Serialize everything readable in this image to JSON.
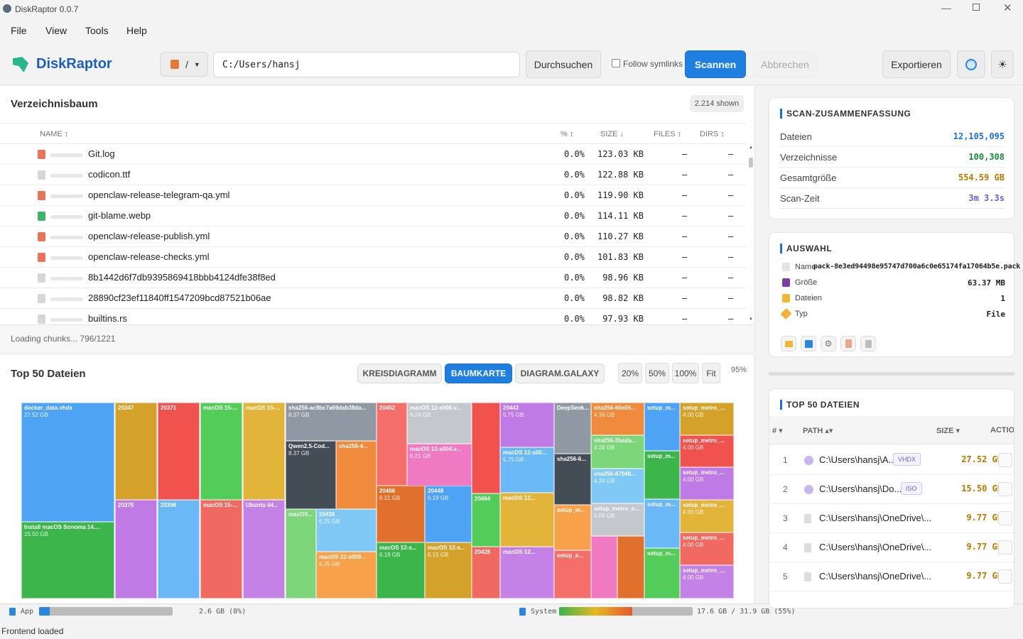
{
  "window": {
    "title": "DiskRaptor 0.0.7"
  },
  "menu": [
    "File",
    "View",
    "Tools",
    "Help"
  ],
  "toolbar": {
    "logo": "DiskRaptor",
    "drive": "/",
    "path": "C:/Users/hansj",
    "browse": "Durchsuchen",
    "follow_symlinks": "Follow symlinks",
    "scan": "Scannen",
    "cancel": "Abbrechen",
    "export": "Exportieren"
  },
  "tree": {
    "title": "Verzeichnisbaum",
    "shown": "2.214 shown",
    "columns": {
      "name": "NAME",
      "pct": "%",
      "size": "SIZE",
      "files": "FILES",
      "dirs": "DIRS"
    },
    "rows": [
      {
        "name": "Git.log",
        "pct": "0.0%",
        "size": "123.03 KB",
        "files": "–",
        "dirs": "–"
      },
      {
        "name": "codicon.ttf",
        "pct": "0.0%",
        "size": "122.88 KB",
        "files": "–",
        "dirs": "–"
      },
      {
        "name": "openclaw-release-telegram-qa.yml",
        "pct": "0.0%",
        "size": "119.90 KB",
        "files": "–",
        "dirs": "–"
      },
      {
        "name": "git-blame.webp",
        "pct": "0.0%",
        "size": "114.11 KB",
        "files": "–",
        "dirs": "–"
      },
      {
        "name": "openclaw-release-publish.yml",
        "pct": "0.0%",
        "size": "110.27 KB",
        "files": "–",
        "dirs": "–"
      },
      {
        "name": "openclaw-release-checks.yml",
        "pct": "0.0%",
        "size": "101.83 KB",
        "files": "–",
        "dirs": "–"
      },
      {
        "name": "8b1442d6f7db9395869418bbb4124dfe38f8ed",
        "pct": "0.0%",
        "size": "98.96 KB",
        "files": "–",
        "dirs": "–"
      },
      {
        "name": "28890cf23ef11840ff1547209bcd87521b06ae",
        "pct": "0.0%",
        "size": "98.82 KB",
        "files": "–",
        "dirs": "–"
      },
      {
        "name": "builtins.rs",
        "pct": "0.0%",
        "size": "97.93 KB",
        "files": "–",
        "dirs": "–"
      }
    ],
    "loading": "Loading chunks... 796/1221"
  },
  "top50": {
    "title": "Top 50 Dateien",
    "tabs": [
      "KREISDIAGRAMM",
      "BAUMKARTE",
      "DIAGRAM.GALAXY"
    ],
    "zoom": [
      "20%",
      "50%",
      "100%",
      "Fit"
    ],
    "zoom_level": "95%"
  },
  "treemap": [
    {
      "l": "docker_data.vhdx",
      "v": "27.52 GB"
    },
    {
      "l": "Install macOS Sonoma 14....",
      "v": "15.50 GB"
    },
    {
      "l": "20347",
      "v": ""
    },
    {
      "l": "20375",
      "v": ""
    },
    {
      "l": "20371",
      "v": ""
    },
    {
      "l": "20396",
      "v": ""
    },
    {
      "l": "macOS 15-...",
      "v": ""
    },
    {
      "l": "macOS 15-...",
      "v": ""
    },
    {
      "l": "macOS 15-...",
      "v": ""
    },
    {
      "l": "Ubuntu 64...",
      "v": ""
    },
    {
      "l": "sha256-ac9bc7a69dab38da...",
      "v": "8.37 GB"
    },
    {
      "l": "Qwen2.5-Cod...",
      "v": "8.37 GB"
    },
    {
      "l": "sha256-4...",
      "v": ""
    },
    {
      "l": "macOS...",
      "v": ""
    },
    {
      "l": "20438",
      "v": "6.25 GB"
    },
    {
      "l": "macOS 12-s009...",
      "v": "6.25 GB"
    },
    {
      "l": "20452",
      "v": ""
    },
    {
      "l": "macOS 12-s006.v...",
      "v": "6.24 GB"
    },
    {
      "l": "macOS 12-s004.v...",
      "v": "6.21 GB"
    },
    {
      "l": "20466",
      "v": "6.21 GB"
    },
    {
      "l": "20448",
      "v": "6.19 GB"
    },
    {
      "l": "macOS 12-s...",
      "v": "6.19 GB"
    },
    {
      "l": "macOS 12-s...",
      "v": "6.15 GB"
    },
    {
      "l": "",
      "v": ""
    },
    {
      "l": "20464",
      "v": ""
    },
    {
      "l": "20428",
      "v": ""
    },
    {
      "l": "20442",
      "v": "5.75 GB"
    },
    {
      "l": "macOS 12-s00...",
      "v": "5.75 GB"
    },
    {
      "l": "macOS 12...",
      "v": ""
    },
    {
      "l": "macOS 12...",
      "v": ""
    },
    {
      "l": "DeepSeek...",
      "v": ""
    },
    {
      "l": "sha256-6...",
      "v": ""
    },
    {
      "l": "setup_m...",
      "v": ""
    },
    {
      "l": "setup_e...",
      "v": ""
    },
    {
      "l": "sha256-60e05...",
      "v": "4.36 GB"
    },
    {
      "l": "sha256-2bada...",
      "v": "4.28 GB"
    },
    {
      "l": "sha256-87048...",
      "v": "4.34 GB"
    },
    {
      "l": "setup_metro_e...",
      "v": "4.00 GB"
    },
    {
      "l": "",
      "v": ""
    },
    {
      "l": "",
      "v": ""
    },
    {
      "l": "setup_m...",
      "v": ""
    },
    {
      "l": "setup_m...",
      "v": ""
    },
    {
      "l": "setup_m...",
      "v": ""
    },
    {
      "l": "setup_m...",
      "v": ""
    },
    {
      "l": "setup_metro_...",
      "v": "4.00 GB"
    },
    {
      "l": "setup_metro_...",
      "v": "4.00 GB"
    },
    {
      "l": "setup_metro_...",
      "v": "4.00 GB"
    },
    {
      "l": "setup_metro_...",
      "v": "4.00 GB"
    },
    {
      "l": "setup_metro_...",
      "v": "4.00 GB"
    },
    {
      "l": "setup_metro_...",
      "v": "4.00 GB"
    }
  ],
  "statusbar": {
    "app_label": "App",
    "app_value": "2.6 GB (8%)",
    "app_pct": 8,
    "system_label": "System",
    "system_value": "17.6 GB / 31.9 GB (55%)",
    "system_pct": 55
  },
  "footer": "Frontend loaded",
  "summary": {
    "title": "SCAN-ZUSAMMENFASSUNG",
    "rows": [
      {
        "k": "Dateien",
        "v": "12,105,095",
        "c": "#1e6fd9"
      },
      {
        "k": "Verzeichnisse",
        "v": "100,308",
        "c": "#1a8a3a"
      },
      {
        "k": "Gesamtgröße",
        "v": "554.59 GB",
        "c": "#b27a00"
      },
      {
        "k": "Scan-Zeit",
        "v": "3m 3.3s",
        "c": "#6b5fd8"
      }
    ]
  },
  "selection": {
    "title": "AUSWAHL",
    "name_label": "Name",
    "name_value": "pack-8e3ed94498e95747d700a6c0e65174fa17064b5e.pack",
    "rows": [
      {
        "k": "Größe",
        "v": "63.37 MB"
      },
      {
        "k": "Dateien",
        "v": "1"
      },
      {
        "k": "Typ",
        "v": "File"
      }
    ]
  },
  "top_files": {
    "title": "TOP 50 DATEIEN",
    "columns": {
      "num": "#",
      "path": "PATH",
      "size": "SIZE",
      "action": "ACTIO"
    },
    "rows": [
      {
        "n": "1",
        "p": "C:\\Users\\hansj\\A...",
        "t": "VHDX",
        "s": "27.52 GB"
      },
      {
        "n": "2",
        "p": "C:\\Users\\hansj\\Do...",
        "t": "ISO",
        "s": "15.50 GB"
      },
      {
        "n": "3",
        "p": "C:\\Users\\hansj\\OneDrive\\...",
        "t": "",
        "s": "9.77 GB"
      },
      {
        "n": "4",
        "p": "C:\\Users\\hansj\\OneDrive\\...",
        "t": "",
        "s": "9.77 GB"
      },
      {
        "n": "5",
        "p": "C:\\Users\\hansj\\OneDrive\\...",
        "t": "",
        "s": "9.77 GB"
      }
    ]
  }
}
